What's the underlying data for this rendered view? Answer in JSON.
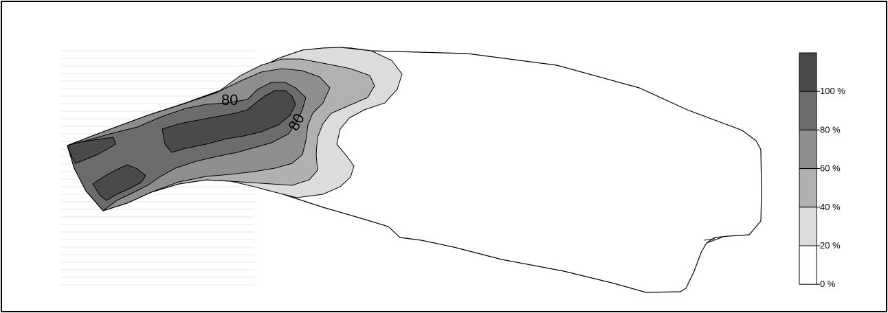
{
  "chart_data": {
    "type": "heatmap",
    "title": "",
    "xlabel": "",
    "ylabel": "",
    "legend": {
      "placement": "right",
      "bins": [
        {
          "from": 100,
          "to": 120,
          "color": "#4a4a4a"
        },
        {
          "from": 80,
          "to": 100,
          "color": "#6c6c6c"
        },
        {
          "from": 60,
          "to": 80,
          "color": "#8e8e8e"
        },
        {
          "from": 40,
          "to": 60,
          "color": "#b1b1b1"
        },
        {
          "from": 20,
          "to": 40,
          "color": "#dcdcdc"
        },
        {
          "from": 0,
          "to": 20,
          "color": "#ffffff"
        }
      ],
      "tick_labels": [
        "100 %",
        "80 %",
        "60 %",
        "40 %",
        "20 %",
        "0 %"
      ]
    },
    "contour_labels": [
      "80",
      "80"
    ],
    "levels_percent": [
      0,
      20,
      40,
      60,
      80,
      100
    ]
  }
}
